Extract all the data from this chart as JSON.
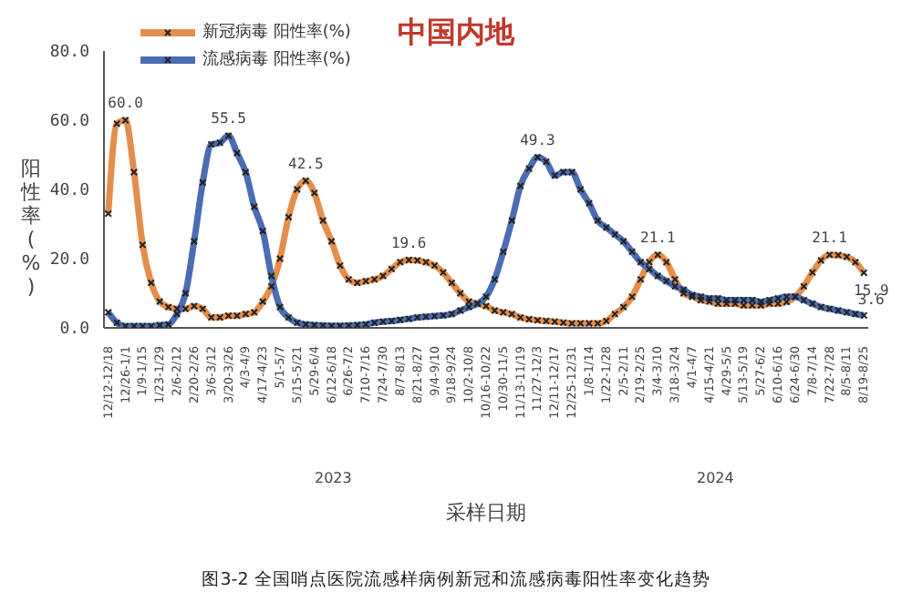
{
  "chart_data": {
    "type": "line",
    "title": "中国内地",
    "xlabel": "采样日期",
    "ylabel": "阳性率(%)",
    "categories": [
      "12/12-12/18",
      null,
      "12/26-1/1",
      null,
      "1/9-1/15",
      null,
      "1/23-1/29",
      null,
      "2/6-2/12",
      null,
      "2/20-2/26",
      null,
      "3/6-3/12",
      null,
      "3/20-3/26",
      null,
      "4/3-4/9",
      null,
      "4/17-4/23",
      null,
      "5/1-5/7",
      null,
      "5/15-5/21",
      null,
      "5/29-6/4",
      null,
      "6/12-6/18",
      null,
      "6/26-7/2",
      null,
      "7/10-7/16",
      null,
      "7/24-7/30",
      null,
      "8/7-8/13",
      null,
      "8/21-8/27",
      null,
      "9/4-9/10",
      null,
      "9/18-9/24",
      null,
      "10/2-10/8",
      null,
      "10/16-10/22",
      null,
      "10/30-11/5",
      null,
      "11/13-11/19",
      null,
      "11/27-12/3",
      null,
      "12/11-12/17",
      null,
      "12/25-12/31",
      null,
      "1/8-1/14",
      null,
      "1/22-1/28",
      null,
      "2/5-2/11",
      null,
      "2/19-2/25",
      null,
      "3/4-3/10",
      null,
      "3/18-3/24",
      null,
      "4/1-4/7",
      null,
      "4/15-4/21",
      null,
      "4/29-5/5",
      null,
      "5/13-5/19",
      null,
      "5/27-6/2",
      null,
      "6/10-6/16",
      null,
      "6/24-6/30",
      null,
      "7/8-7/14",
      null,
      "7/22-7/28",
      null,
      "8/5-8/11",
      null,
      "8/19-8/25"
    ],
    "series": [
      {
        "name": "新冠病毒 阳性率(%)",
        "color": "#e58e4c",
        "values": [
          33,
          59,
          60,
          45,
          24,
          13,
          7.6,
          6,
          5.5,
          5.5,
          6.3,
          5.5,
          3,
          3,
          3.5,
          3.5,
          4,
          4.5,
          7.6,
          12,
          20,
          32,
          40,
          42.5,
          39,
          31,
          25,
          18,
          14,
          13,
          13.5,
          14,
          15,
          17,
          19,
          19.6,
          19.5,
          19,
          18,
          16,
          13,
          10,
          7.6,
          7,
          6.3,
          5,
          4.5,
          4,
          3,
          2.5,
          2.2,
          2,
          1.8,
          1.5,
          1.3,
          1.3,
          1.3,
          1.3,
          2,
          4,
          6,
          9,
          14,
          19,
          21.1,
          19,
          14,
          10,
          9,
          8,
          7.6,
          7,
          7,
          7,
          6.5,
          6.5,
          6.5,
          7,
          7,
          7.5,
          9,
          12,
          16,
          19.5,
          21.1,
          21,
          20.5,
          19,
          15.9
        ],
        "value_labels": [
          null,
          null,
          "60.0",
          null,
          null,
          null,
          null,
          null,
          null,
          null,
          null,
          null,
          null,
          null,
          null,
          null,
          null,
          null,
          null,
          null,
          null,
          null,
          null,
          "42.5",
          null,
          null,
          null,
          null,
          null,
          null,
          null,
          null,
          null,
          null,
          null,
          "19.6",
          null,
          null,
          null,
          null,
          null,
          null,
          null,
          null,
          null,
          null,
          null,
          null,
          null,
          null,
          null,
          null,
          null,
          null,
          null,
          null,
          null,
          null,
          null,
          null,
          null,
          null,
          null,
          null,
          "21.1",
          null,
          null,
          null,
          null,
          null,
          null,
          null,
          null,
          null,
          null,
          null,
          null,
          null,
          null,
          null,
          null,
          null,
          null,
          null,
          "21.1",
          null,
          null,
          null,
          "15.9"
        ]
      },
      {
        "name": "流感病毒 阳性率(%)",
        "color": "#4a6db3",
        "values": [
          4.5,
          1.5,
          0.5,
          0.5,
          0.5,
          0.5,
          0.8,
          1,
          4,
          10,
          25,
          42,
          53,
          53.5,
          55.5,
          50.5,
          45,
          35,
          28,
          15,
          6,
          3,
          1.5,
          1,
          0.8,
          0.7,
          0.6,
          0.6,
          0.7,
          0.8,
          1,
          1.5,
          1.8,
          2,
          2.3,
          2.6,
          3,
          3.2,
          3.4,
          3.6,
          4,
          5,
          6,
          7,
          9,
          14,
          22,
          31,
          41,
          46,
          49.3,
          48,
          44,
          45,
          45,
          40,
          36,
          31,
          29,
          27,
          25,
          22,
          19,
          17,
          15,
          13.5,
          12,
          11,
          9.5,
          9,
          8.5,
          8.5,
          8,
          8,
          8,
          8,
          7.5,
          8,
          8.5,
          9,
          9,
          8,
          7,
          6,
          5.5,
          5,
          4.5,
          4,
          3.6
        ],
        "value_labels": [
          null,
          null,
          null,
          null,
          null,
          null,
          null,
          null,
          null,
          null,
          null,
          null,
          null,
          null,
          "55.5",
          null,
          null,
          null,
          null,
          null,
          null,
          null,
          null,
          null,
          null,
          null,
          null,
          null,
          null,
          null,
          null,
          null,
          null,
          null,
          null,
          null,
          null,
          null,
          null,
          null,
          null,
          null,
          null,
          null,
          null,
          null,
          null,
          null,
          null,
          null,
          "49.3",
          null,
          null,
          null,
          null,
          null,
          null,
          null,
          null,
          null,
          null,
          null,
          null,
          null,
          null,
          null,
          null,
          null,
          null,
          null,
          null,
          null,
          null,
          null,
          null,
          null,
          null,
          null,
          null,
          null,
          null,
          null,
          null,
          null,
          null,
          null,
          null,
          null,
          "3.6"
        ]
      }
    ],
    "ylim": [
      0,
      80
    ],
    "yticks": [
      {
        "value": 0,
        "label": "0.0"
      },
      {
        "value": 20,
        "label": "20.0"
      },
      {
        "value": 40,
        "label": "40.0"
      },
      {
        "value": 60,
        "label": "60.0"
      },
      {
        "value": 80,
        "label": "80.0"
      }
    ],
    "grid": false,
    "legend": "top left",
    "marker": "cross",
    "line_style": "solid",
    "annotations": [
      "2023",
      "2024",
      "图3-2 全国哨点医院流感样病例新冠和流感病毒阳性率变化趋势"
    ]
  }
}
